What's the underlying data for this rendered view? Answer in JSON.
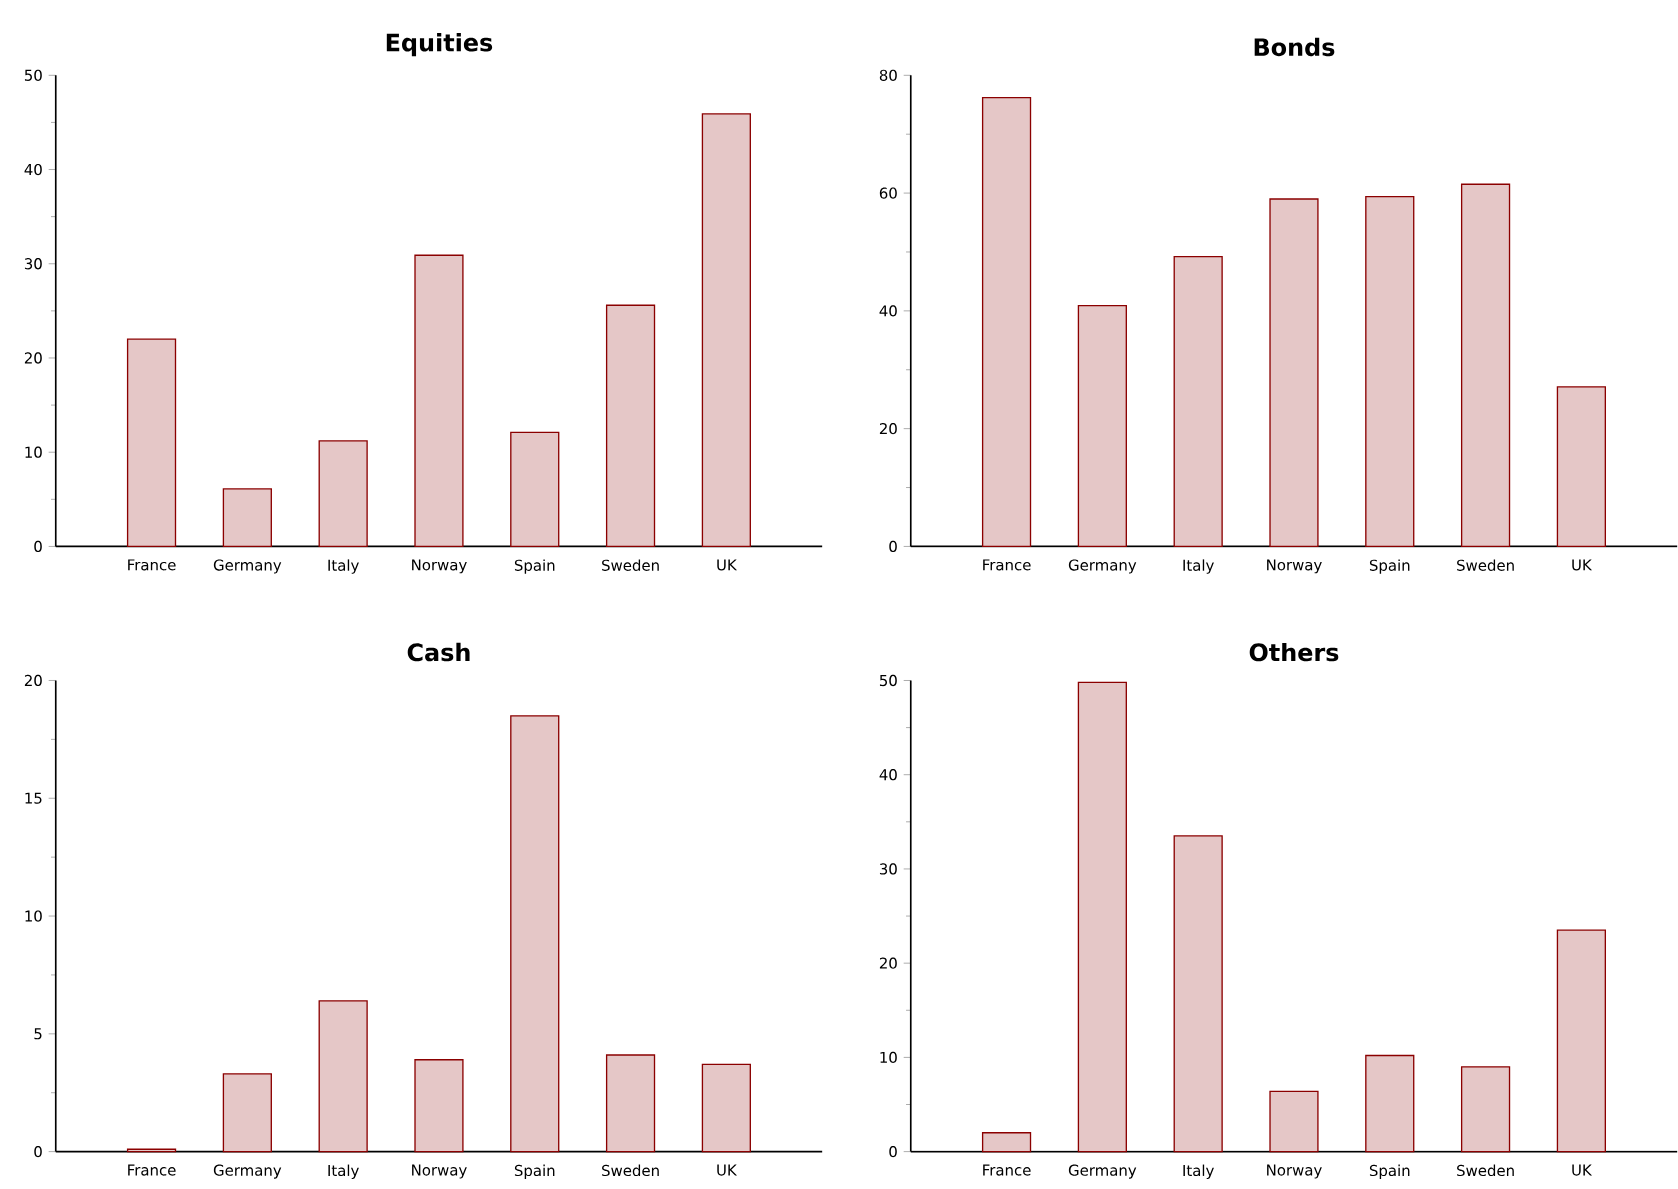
{
  "chart_data": [
    {
      "type": "bar",
      "title": "Equities",
      "categories": [
        "France",
        "Germany",
        "Italy",
        "Norway",
        "Spain",
        "Sweden",
        "UK"
      ],
      "values": [
        22,
        6.1,
        11.2,
        30.9,
        12.1,
        25.6,
        45.9
      ],
      "color": "#8b0000",
      "ylim": [
        0,
        50
      ],
      "yticks": [
        0,
        10,
        20,
        30,
        40,
        50
      ]
    },
    {
      "type": "bar",
      "title": "Bonds",
      "categories": [
        "France",
        "Germany",
        "Italy",
        "Norway",
        "Spain",
        "Sweden",
        "UK"
      ],
      "values": [
        76.2,
        40.9,
        49.2,
        59.0,
        59.4,
        61.5,
        27.1
      ],
      "color": "#8b0000",
      "ylim": [
        0,
        80
      ],
      "yticks": [
        0,
        20,
        40,
        60,
        80
      ]
    },
    {
      "type": "bar",
      "title": "Cash",
      "categories": [
        "France",
        "Germany",
        "Italy",
        "Norway",
        "Spain",
        "Sweden",
        "UK"
      ],
      "values": [
        0.1,
        3.3,
        6.4,
        3.9,
        18.5,
        4.1,
        3.7
      ],
      "color": "#8b0000",
      "ylim": [
        0,
        20
      ],
      "yticks": [
        0,
        5,
        10,
        15,
        20
      ]
    },
    {
      "type": "bar",
      "title": "Others",
      "categories": [
        "France",
        "Germany",
        "Italy",
        "Norway",
        "Spain",
        "Sweden",
        "UK"
      ],
      "values": [
        2.0,
        49.8,
        33.5,
        6.4,
        10.2,
        9.0,
        23.5
      ],
      "color": "#8b0000",
      "ylim": [
        0,
        50
      ],
      "yticks": [
        0,
        10,
        20,
        30,
        40,
        50
      ]
    }
  ]
}
